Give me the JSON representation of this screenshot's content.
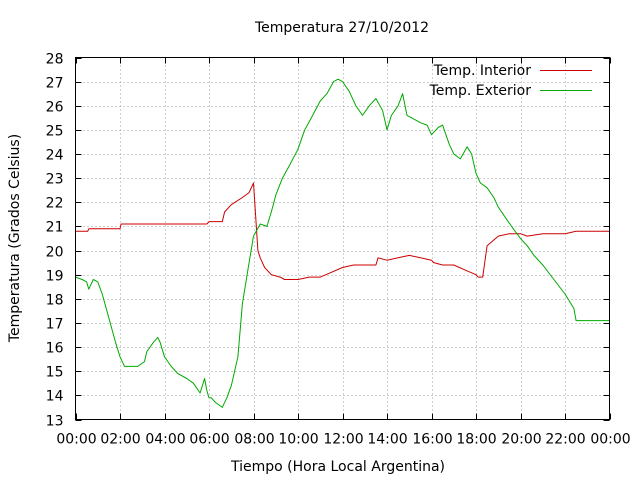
{
  "chart_data": {
    "type": "line",
    "title": "Temperatura 27/10/2012",
    "xlabel": "Tiempo (Hora Local Argentina)",
    "ylabel": "Temperatura (Grados Celsius)",
    "xlim": [
      0,
      24
    ],
    "ylim": [
      13,
      28
    ],
    "grid": true,
    "legend_position": "top-right",
    "x_ticks": [
      "00:00",
      "02:00",
      "04:00",
      "06:00",
      "08:00",
      "10:00",
      "12:00",
      "14:00",
      "16:00",
      "18:00",
      "20:00",
      "22:00",
      "00:00"
    ],
    "y_ticks": [
      "13",
      "14",
      "15",
      "16",
      "17",
      "18",
      "19",
      "20",
      "21",
      "22",
      "23",
      "24",
      "25",
      "26",
      "27",
      "28"
    ],
    "series": [
      {
        "name": "Temp. Interior",
        "color": "#cc0000",
        "x": [
          0,
          0.55,
          0.6,
          2.0,
          2.05,
          2.5,
          2.55,
          5.9,
          6.0,
          6.6,
          6.7,
          7.0,
          7.5,
          7.8,
          8.0,
          8.2,
          8.3,
          8.5,
          8.8,
          9.2,
          9.4,
          9.5,
          10.0,
          10.5,
          11.0,
          11.5,
          12.0,
          12.5,
          13.0,
          13.5,
          13.6,
          14.0,
          14.5,
          15.0,
          15.5,
          16.0,
          16.1,
          16.5,
          17.0,
          17.5,
          18.0,
          18.1,
          18.3,
          18.5,
          19.0,
          19.5,
          20.0,
          20.3,
          21.0,
          22.0,
          22.5,
          23.0,
          24.0
        ],
        "values": [
          20.8,
          20.8,
          20.9,
          20.9,
          21.1,
          21.1,
          21.1,
          21.1,
          21.2,
          21.2,
          21.6,
          21.9,
          22.2,
          22.4,
          22.8,
          20.0,
          19.7,
          19.3,
          19.0,
          18.9,
          18.8,
          18.8,
          18.8,
          18.9,
          18.9,
          19.1,
          19.3,
          19.4,
          19.4,
          19.4,
          19.7,
          19.6,
          19.7,
          19.8,
          19.7,
          19.6,
          19.5,
          19.4,
          19.4,
          19.2,
          19.0,
          18.9,
          18.9,
          20.2,
          20.6,
          20.7,
          20.7,
          20.6,
          20.7,
          20.7,
          20.8,
          20.8,
          20.8
        ]
      },
      {
        "name": "Temp. Exterior",
        "color": "#00aa00",
        "x": [
          0,
          0.3,
          0.5,
          0.6,
          0.8,
          1.0,
          1.2,
          1.5,
          1.8,
          2.0,
          2.2,
          2.4,
          2.8,
          3.1,
          3.2,
          3.5,
          3.7,
          3.8,
          4.0,
          4.3,
          4.6,
          5.0,
          5.3,
          5.6,
          5.8,
          5.9,
          6.0,
          6.1,
          6.3,
          6.6,
          6.8,
          7.0,
          7.3,
          7.5,
          7.8,
          8.0,
          8.3,
          8.6,
          8.8,
          9.0,
          9.3,
          9.6,
          10.0,
          10.3,
          10.6,
          11.0,
          11.3,
          11.6,
          11.8,
          12.0,
          12.3,
          12.6,
          12.9,
          13.2,
          13.5,
          13.8,
          14.0,
          14.2,
          14.5,
          14.7,
          14.9,
          15.1,
          15.3,
          15.5,
          15.8,
          16.0,
          16.3,
          16.5,
          16.8,
          17.0,
          17.3,
          17.6,
          17.8,
          18.0,
          18.2,
          18.5,
          18.8,
          19.0,
          19.3,
          19.6,
          20.0,
          20.3,
          20.6,
          21.0,
          21.5,
          22.0,
          22.4,
          22.5,
          23.0,
          24.0
        ],
        "values": [
          18.9,
          18.8,
          18.7,
          18.4,
          18.8,
          18.7,
          18.2,
          17.2,
          16.2,
          15.6,
          15.2,
          15.2,
          15.2,
          15.4,
          15.8,
          16.2,
          16.4,
          16.2,
          15.6,
          15.2,
          14.9,
          14.7,
          14.5,
          14.1,
          14.7,
          14.2,
          13.9,
          13.9,
          13.7,
          13.5,
          13.9,
          14.4,
          15.6,
          17.8,
          19.5,
          20.6,
          21.1,
          21.0,
          21.6,
          22.3,
          23.0,
          23.5,
          24.2,
          25.0,
          25.5,
          26.2,
          26.5,
          27.0,
          27.1,
          27.0,
          26.6,
          26.0,
          25.6,
          26.0,
          26.3,
          25.8,
          25.0,
          25.6,
          26.0,
          26.5,
          25.6,
          25.5,
          25.4,
          25.3,
          25.2,
          24.8,
          25.1,
          25.2,
          24.4,
          24.0,
          23.8,
          24.3,
          24.0,
          23.2,
          22.8,
          22.6,
          22.2,
          21.8,
          21.4,
          21.0,
          20.5,
          20.2,
          19.8,
          19.4,
          18.8,
          18.2,
          17.6,
          17.1,
          17.1,
          17.1
        ]
      }
    ]
  }
}
